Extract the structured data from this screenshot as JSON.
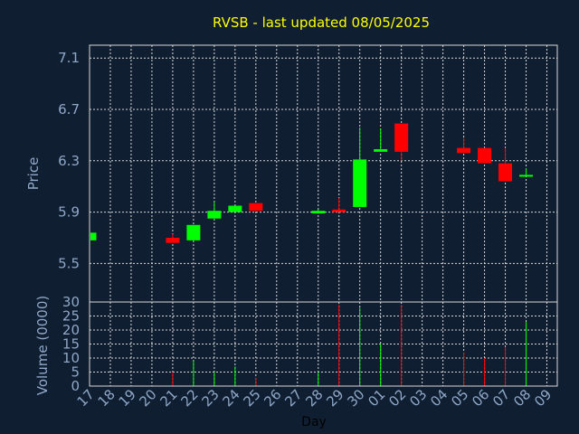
{
  "chart_data": {
    "type": "candlestick",
    "title": "RVSB - last updated 08/05/2025",
    "xlabel": "Day",
    "ylabel_price": "Price",
    "ylabel_volume": "Volume (0000)",
    "price_ylim": [
      5.2,
      7.2
    ],
    "price_ticks": [
      "5.5",
      "5.9",
      "6.3",
      "6.7",
      "7.1"
    ],
    "volume_ylim": [
      0,
      30
    ],
    "volume_ticks": [
      "0",
      "5",
      "10",
      "15",
      "20",
      "25",
      "30"
    ],
    "grid": true,
    "colors": {
      "up": "#00ff00",
      "down": "#ff0000",
      "background": "#0f1e30",
      "grid": "#d8d8d8",
      "title": "#ffff00",
      "text": "#8fa8c8"
    },
    "days": [
      "17",
      "18",
      "19",
      "20",
      "21",
      "22",
      "23",
      "24",
      "25",
      "26",
      "27",
      "28",
      "29",
      "30",
      "01",
      "02",
      "03",
      "04",
      "05",
      "06",
      "07",
      "08",
      "09"
    ],
    "candles": [
      {
        "day": "17",
        "open": 5.68,
        "close": 5.74,
        "high": 5.74,
        "low": 5.68,
        "volume": 0
      },
      {
        "day": "21",
        "open": 5.7,
        "close": 5.66,
        "high": 5.73,
        "low": 5.66,
        "volume": 5
      },
      {
        "day": "22",
        "open": 5.68,
        "close": 5.8,
        "high": 5.8,
        "low": 5.68,
        "volume": 9
      },
      {
        "day": "23",
        "open": 5.85,
        "close": 5.91,
        "high": 5.98,
        "low": 5.85,
        "volume": 5
      },
      {
        "day": "24",
        "open": 5.9,
        "close": 5.95,
        "high": 5.95,
        "low": 5.9,
        "volume": 7
      },
      {
        "day": "25",
        "open": 5.97,
        "close": 5.91,
        "high": 5.97,
        "low": 5.91,
        "volume": 3
      },
      {
        "day": "28",
        "open": 5.89,
        "close": 5.91,
        "high": 5.92,
        "low": 5.89,
        "volume": 5
      },
      {
        "day": "29",
        "open": 5.92,
        "close": 5.9,
        "high": 6.01,
        "low": 5.9,
        "volume": 29
      },
      {
        "day": "30",
        "open": 5.94,
        "close": 6.31,
        "high": 6.56,
        "low": 5.94,
        "volume": 28
      },
      {
        "day": "01",
        "open": 6.37,
        "close": 6.39,
        "high": 6.55,
        "low": 6.37,
        "volume": 15
      },
      {
        "day": "02",
        "open": 6.59,
        "close": 6.37,
        "high": 6.59,
        "low": 6.3,
        "volume": 29
      },
      {
        "day": "05",
        "open": 6.4,
        "close": 6.36,
        "high": 6.48,
        "low": 6.36,
        "volume": 12
      },
      {
        "day": "06",
        "open": 6.4,
        "close": 6.28,
        "high": 6.4,
        "low": 6.28,
        "volume": 10
      },
      {
        "day": "07",
        "open": 6.28,
        "close": 6.14,
        "high": 6.4,
        "low": 6.14,
        "volume": 14
      },
      {
        "day": "08",
        "open": 6.18,
        "close": 6.19,
        "high": 6.24,
        "low": 6.18,
        "volume": 23
      }
    ]
  }
}
